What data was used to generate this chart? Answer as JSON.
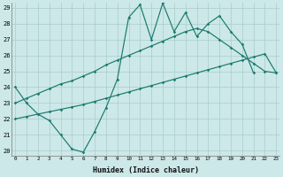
{
  "xlabel": "Humidex (Indice chaleur)",
  "bg_color": "#cce8e8",
  "grid_color": "#aacccc",
  "line_color": "#1a7a6e",
  "ylim": [
    20,
    29
  ],
  "xlim": [
    0,
    23
  ],
  "yticks": [
    20,
    21,
    22,
    23,
    24,
    25,
    26,
    27,
    28,
    29
  ],
  "xticks": [
    0,
    1,
    2,
    3,
    4,
    5,
    6,
    7,
    8,
    9,
    10,
    11,
    12,
    13,
    14,
    15,
    16,
    17,
    18,
    19,
    20,
    21,
    22,
    23
  ],
  "curve_a_x": [
    0,
    1,
    2,
    3,
    4,
    5,
    6,
    7,
    8,
    9,
    10,
    11,
    12,
    13,
    14,
    15,
    16,
    17,
    18,
    19,
    20,
    21
  ],
  "curve_a_y": [
    24.0,
    23.0,
    22.3,
    21.9,
    21.0,
    20.1,
    19.9,
    21.2,
    22.7,
    24.5,
    28.4,
    29.2,
    27.0,
    29.3,
    27.5,
    28.7,
    27.2,
    28.0,
    28.5,
    27.5,
    26.7,
    24.9
  ],
  "curve_b_x": [
    0,
    1,
    2,
    3,
    4,
    5,
    6,
    7,
    8,
    9,
    10,
    11,
    12,
    13,
    14,
    15,
    16,
    17,
    18,
    19,
    20,
    21,
    22,
    23
  ],
  "curve_b_y": [
    23.0,
    23.3,
    23.6,
    23.9,
    24.2,
    24.4,
    24.7,
    25.0,
    25.4,
    25.7,
    26.0,
    26.3,
    26.6,
    26.9,
    27.2,
    27.5,
    27.7,
    27.5,
    27.0,
    26.5,
    26.0,
    25.5,
    25.0,
    24.9
  ],
  "curve_c_x": [
    0,
    1,
    2,
    3,
    4,
    5,
    6,
    7,
    8,
    9,
    10,
    11,
    12,
    13,
    14,
    15,
    16,
    17,
    18,
    19,
    20,
    21,
    22,
    23
  ],
  "curve_c_y": [
    22.0,
    22.15,
    22.3,
    22.45,
    22.6,
    22.75,
    22.9,
    23.1,
    23.3,
    23.5,
    23.7,
    23.9,
    24.1,
    24.3,
    24.5,
    24.7,
    24.9,
    25.1,
    25.3,
    25.5,
    25.7,
    25.9,
    26.1,
    24.9
  ]
}
